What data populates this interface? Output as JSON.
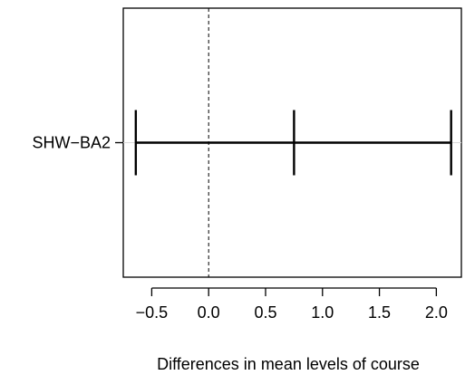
{
  "chart_data": {
    "type": "interval",
    "title": "",
    "xlabel": "Differences in mean levels of course",
    "ylabel": "",
    "xlim": [
      -0.75,
      2.22
    ],
    "xticks": [
      -0.5,
      0.0,
      0.5,
      1.0,
      1.5,
      2.0
    ],
    "xtick_labels": [
      "−0.5",
      "0.0",
      "0.5",
      "1.0",
      "1.5",
      "2.0"
    ],
    "reference_line": {
      "x": 0.0,
      "style": "dashed"
    },
    "grid": false,
    "comparisons": [
      {
        "label": "SHW−BA2",
        "lower": -0.64,
        "estimate": 0.75,
        "upper": 2.13
      }
    ]
  }
}
